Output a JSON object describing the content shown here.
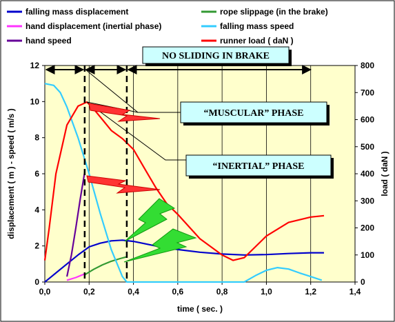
{
  "chart_data": {
    "type": "line",
    "xlabel": "time ( sec. )",
    "ylabel_left": "displacement ( m ) - speed ( m/s )",
    "ylabel_right": "load ( daN )",
    "xlim": [
      0,
      1.4
    ],
    "ylim_left": [
      0,
      12
    ],
    "ylim_right": [
      0,
      800
    ],
    "x_ticks": [
      "0,0",
      "0,2",
      "0,4",
      "0,6",
      "0,8",
      "1,0",
      "1,2",
      "1,4"
    ],
    "y_left_ticks": [
      "0",
      "2",
      "4",
      "6",
      "8",
      "10",
      "12"
    ],
    "y_right_ticks": [
      "0",
      "100",
      "200",
      "300",
      "400",
      "500",
      "600",
      "700",
      "800"
    ],
    "grid": "vertical",
    "legend_position": "top",
    "plot_background": "#ffffcc",
    "series": [
      {
        "name": "falling mass displacement",
        "color": "#0000cc",
        "axis": "left",
        "x": [
          0.0,
          0.02,
          0.05,
          0.1,
          0.15,
          0.2,
          0.25,
          0.3,
          0.35,
          0.4,
          0.5,
          0.6,
          0.7,
          0.8,
          0.9,
          1.0,
          1.1,
          1.2,
          1.26
        ],
        "y": [
          0.0,
          0.2,
          0.5,
          1.0,
          1.5,
          1.95,
          2.15,
          2.28,
          2.32,
          2.25,
          2.0,
          1.8,
          1.65,
          1.55,
          1.5,
          1.52,
          1.58,
          1.62,
          1.62
        ]
      },
      {
        "name": "rope  slippage (in the brake)",
        "color": "#339933",
        "axis": "left",
        "x": [
          0.18,
          0.22,
          0.26,
          0.3,
          0.34,
          0.37
        ],
        "y": [
          0.4,
          0.7,
          0.95,
          1.15,
          1.3,
          1.4
        ]
      },
      {
        "name": "hand displacement (inertial phase)",
        "color": "#ff33ff",
        "axis": "left",
        "x": [
          0.1,
          0.14,
          0.18
        ],
        "y": [
          0.1,
          0.25,
          0.45
        ]
      },
      {
        "name": "falling mass speed",
        "color": "#33ccff",
        "axis": "left",
        "x": [
          0.0,
          0.04,
          0.07,
          0.1,
          0.15,
          0.2,
          0.25,
          0.3,
          0.35,
          0.37,
          0.9,
          0.95,
          1.0,
          1.05,
          1.1,
          1.15,
          1.2,
          1.25
        ],
        "y": [
          11.0,
          10.9,
          10.5,
          9.7,
          8.0,
          6.0,
          3.8,
          1.8,
          0.3,
          0.0,
          0.0,
          0.35,
          0.65,
          0.8,
          0.72,
          0.5,
          0.3,
          0.1
        ]
      },
      {
        "name": "hand speed",
        "color": "#660099",
        "axis": "left",
        "x": [
          0.1,
          0.12,
          0.14,
          0.16,
          0.18
        ],
        "y": [
          0.3,
          1.5,
          3.0,
          4.6,
          6.1
        ]
      },
      {
        "name": "runner load ( daN )",
        "color": "#ff0000",
        "axis": "right",
        "x": [
          0.0,
          0.02,
          0.05,
          0.1,
          0.15,
          0.19,
          0.22,
          0.26,
          0.3,
          0.35,
          0.4,
          0.45,
          0.5,
          0.55,
          0.6,
          0.7,
          0.8,
          0.85,
          0.9,
          0.95,
          1.0,
          1.1,
          1.2,
          1.26
        ],
        "y": [
          80,
          200,
          400,
          580,
          650,
          665,
          640,
          600,
          560,
          530,
          490,
          420,
          350,
          290,
          250,
          160,
          100,
          80,
          90,
          130,
          170,
          220,
          240,
          245
        ]
      }
    ],
    "phase_lines_x": [
      0.18,
      0.37
    ],
    "annotations": [
      "NO SLIDING IN BRAKE",
      "“MUSCULAR”  PHASE",
      "“INERTIAL”  PHASE"
    ]
  }
}
